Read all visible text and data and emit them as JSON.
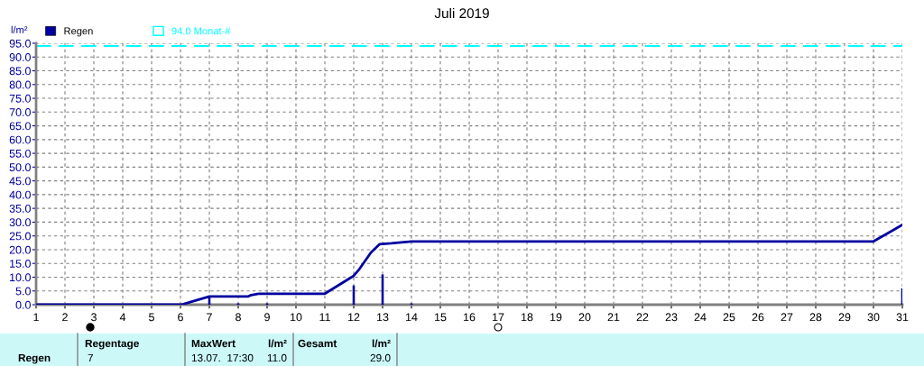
{
  "chart_data": {
    "type": "line",
    "title": "Juli 2019",
    "ylabel": "l/m²",
    "x": [
      1,
      6,
      6.1,
      7,
      8.35,
      8.45,
      8.7,
      11.0,
      12.0,
      12.2,
      12.6,
      12.9,
      13.3,
      14,
      30,
      31
    ],
    "series": [
      {
        "type": "bar",
        "name": "Regen",
        "color": "#0000a0",
        "x": [
          7,
          8,
          9,
          12,
          13,
          14,
          31
        ],
        "values": [
          3.0,
          0.5,
          0.5,
          7.0,
          11.0,
          0.5,
          6.0
        ]
      },
      {
        "color": "#0000a0",
        "values": [
          0,
          0,
          0.2,
          3.0,
          3.0,
          3.5,
          4.0,
          4.0,
          10.5,
          13.0,
          19.0,
          22.0,
          22.3,
          23.0,
          23.0,
          29.0
        ]
      }
    ],
    "xlim": [
      1,
      31
    ],
    "xticks": [
      1,
      2,
      3,
      4,
      5,
      6,
      7,
      8,
      9,
      10,
      11,
      12,
      13,
      14,
      15,
      16,
      17,
      18,
      19,
      20,
      21,
      22,
      23,
      24,
      25,
      26,
      27,
      28,
      29,
      30,
      31
    ],
    "ylim": [
      0,
      95
    ],
    "yticks": [
      {
        "value": 0,
        "label": "0.0"
      },
      {
        "value": 5,
        "label": "5.0"
      },
      {
        "value": 10,
        "label": "10.0"
      },
      {
        "value": 15,
        "label": "15.0"
      },
      {
        "value": 20,
        "label": "20.0"
      },
      {
        "value": 25,
        "label": "25.0"
      },
      {
        "value": 30,
        "label": "30.0"
      },
      {
        "value": 35,
        "label": "35.0"
      },
      {
        "value": 40,
        "label": "40.0"
      },
      {
        "value": 45,
        "label": "45.0"
      },
      {
        "value": 50,
        "label": "50.0"
      },
      {
        "value": 55,
        "label": "55.0"
      },
      {
        "value": 60,
        "label": "60.0"
      },
      {
        "value": 65,
        "label": "65.0"
      },
      {
        "value": 70,
        "label": "70.0"
      },
      {
        "value": 75,
        "label": "75.0"
      },
      {
        "value": 80,
        "label": "80.0"
      },
      {
        "value": 85,
        "label": "85.0"
      },
      {
        "value": 90,
        "label": "90.0"
      },
      {
        "value": 95,
        "label": "95.0"
      }
    ],
    "ref_lines": [
      {
        "axis": "y",
        "value": 94.0,
        "label": "94.0 Monat-#",
        "color": "#00ffff",
        "line_style": "dashed"
      }
    ],
    "grid": true,
    "legend": "top left",
    "marker": "none",
    "line_style": "solid",
    "annotations": [
      "Regen",
      "Regentage",
      "7",
      "MaxWert",
      "l/m²",
      "13.07.  17:30",
      "11.0",
      "Gesamt",
      "l/m²",
      "29.0"
    ]
  }
}
